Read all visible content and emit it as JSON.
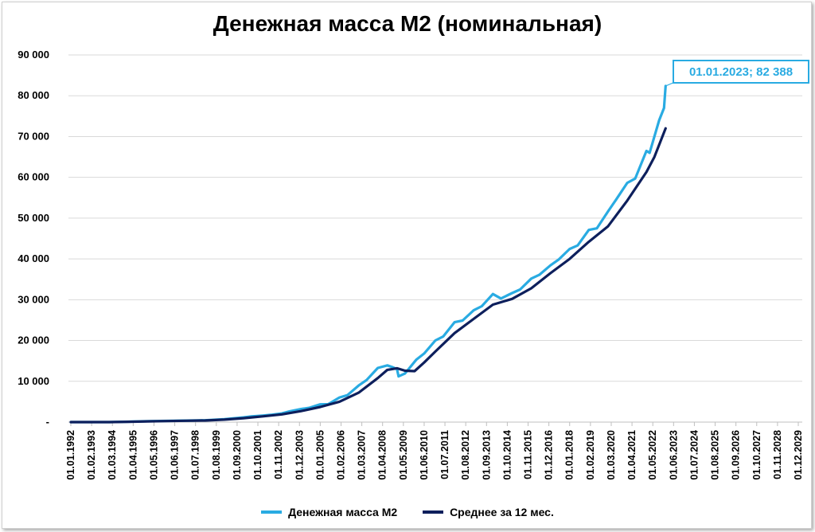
{
  "chart_data": {
    "type": "line",
    "title": "Денежная масса М2 (номинальная)",
    "ylim": [
      0,
      90000
    ],
    "yticks": [
      {
        "value": 0,
        "label": "-"
      },
      {
        "value": 10000,
        "label": "10 000"
      },
      {
        "value": 20000,
        "label": "20 000"
      },
      {
        "value": 30000,
        "label": "30 000"
      },
      {
        "value": 40000,
        "label": "40 000"
      },
      {
        "value": 50000,
        "label": "50 000"
      },
      {
        "value": 60000,
        "label": "60 000"
      },
      {
        "value": 70000,
        "label": "70 000"
      },
      {
        "value": 80000,
        "label": "80 000"
      },
      {
        "value": 90000,
        "label": "90 000"
      }
    ],
    "xticks": [
      "01.01.1992",
      "01.02.1993",
      "01.03.1994",
      "01.04.1995",
      "01.05.1996",
      "01.06.1997",
      "01.07.1998",
      "01.08.1999",
      "01.09.2000",
      "01.10.2001",
      "01.11.2002",
      "01.12.2003",
      "01.01.2005",
      "01.02.2006",
      "01.03.2007",
      "01.04.2008",
      "01.05.2009",
      "01.06.2010",
      "01.07.2011",
      "01.08.2012",
      "01.09.2013",
      "01.10.2014",
      "01.11.2015",
      "01.12.2016",
      "01.01.2018",
      "01.02.2019",
      "01.03.2020",
      "01.04.2021",
      "01.05.2022",
      "01.06.2023",
      "01.07.2024",
      "01.08.2025",
      "01.09.2026",
      "01.10.2027",
      "01.11.2028",
      "01.12.2029"
    ],
    "grid": true,
    "legend_position": "bottom",
    "series": [
      {
        "name": "Денежная масса М2",
        "color": "#29abe2",
        "points": [
          [
            "1992-01-01",
            0
          ],
          [
            "1993-01-01",
            0
          ],
          [
            "1994-01-01",
            0
          ],
          [
            "1995-01-01",
            100
          ],
          [
            "1996-01-01",
            220
          ],
          [
            "1997-01-01",
            290
          ],
          [
            "1998-01-01",
            380
          ],
          [
            "1999-01-01",
            450
          ],
          [
            "2000-01-01",
            710
          ],
          [
            "2001-01-01",
            1150
          ],
          [
            "2001-06-01",
            1380
          ],
          [
            "2002-01-01",
            1610
          ],
          [
            "2002-06-01",
            1780
          ],
          [
            "2003-01-01",
            2130
          ],
          [
            "2003-06-01",
            2650
          ],
          [
            "2004-01-01",
            3210
          ],
          [
            "2004-06-01",
            3500
          ],
          [
            "2005-01-01",
            4360
          ],
          [
            "2005-06-01",
            4400
          ],
          [
            "2006-01-01",
            6030
          ],
          [
            "2006-06-01",
            6600
          ],
          [
            "2007-01-01",
            8970
          ],
          [
            "2007-06-01",
            10300
          ],
          [
            "2008-01-01",
            13270
          ],
          [
            "2008-07-01",
            13900
          ],
          [
            "2008-10-01",
            13500
          ],
          [
            "2009-01-01",
            12980
          ],
          [
            "2009-02-01",
            11200
          ],
          [
            "2009-06-01",
            11900
          ],
          [
            "2010-01-01",
            15270
          ],
          [
            "2010-06-01",
            16800
          ],
          [
            "2011-01-01",
            20010
          ],
          [
            "2011-06-01",
            21000
          ],
          [
            "2012-01-01",
            24480
          ],
          [
            "2012-06-01",
            24900
          ],
          [
            "2013-01-01",
            27410
          ],
          [
            "2013-06-01",
            28400
          ],
          [
            "2014-01-01",
            31400
          ],
          [
            "2014-06-01",
            30300
          ],
          [
            "2015-01-01",
            31620
          ],
          [
            "2015-06-01",
            32500
          ],
          [
            "2016-01-01",
            35180
          ],
          [
            "2016-06-01",
            36100
          ],
          [
            "2017-01-01",
            38420
          ],
          [
            "2017-06-01",
            39800
          ],
          [
            "2018-01-01",
            42440
          ],
          [
            "2018-06-01",
            43300
          ],
          [
            "2019-01-01",
            47110
          ],
          [
            "2019-06-01",
            47500
          ],
          [
            "2020-01-01",
            51660
          ],
          [
            "2020-06-01",
            54500
          ],
          [
            "2021-01-01",
            58650
          ],
          [
            "2021-06-01",
            59700
          ],
          [
            "2022-01-01",
            66480
          ],
          [
            "2022-03-01",
            66000
          ],
          [
            "2022-06-01",
            70000
          ],
          [
            "2022-09-01",
            74000
          ],
          [
            "2022-12-01",
            77000
          ],
          [
            "2023-01-01",
            82388
          ]
        ]
      },
      {
        "name": "Среднее за 12 мес.",
        "color": "#0d1f5c",
        "points": [
          [
            "1992-01-01",
            0
          ],
          [
            "1993-01-01",
            0
          ],
          [
            "1994-01-01",
            0
          ],
          [
            "1995-01-01",
            80
          ],
          [
            "1996-01-01",
            180
          ],
          [
            "1997-01-01",
            260
          ],
          [
            "1998-01-01",
            340
          ],
          [
            "1999-01-01",
            400
          ],
          [
            "2000-01-01",
            600
          ],
          [
            "2001-01-01",
            950
          ],
          [
            "2002-01-01",
            1400
          ],
          [
            "2003-01-01",
            1900
          ],
          [
            "2004-01-01",
            2700
          ],
          [
            "2005-01-01",
            3700
          ],
          [
            "2006-01-01",
            5000
          ],
          [
            "2007-01-01",
            7200
          ],
          [
            "2008-01-01",
            10800
          ],
          [
            "2008-07-01",
            12800
          ],
          [
            "2009-01-01",
            13200
          ],
          [
            "2009-06-01",
            12600
          ],
          [
            "2009-12-01",
            12500
          ],
          [
            "2010-06-01",
            14600
          ],
          [
            "2011-01-01",
            17300
          ],
          [
            "2012-01-01",
            21800
          ],
          [
            "2013-01-01",
            25300
          ],
          [
            "2014-01-01",
            28800
          ],
          [
            "2015-01-01",
            30200
          ],
          [
            "2016-01-01",
            32800
          ],
          [
            "2017-01-01",
            36500
          ],
          [
            "2018-01-01",
            40000
          ],
          [
            "2019-01-01",
            44200
          ],
          [
            "2020-01-01",
            48000
          ],
          [
            "2021-01-01",
            54300
          ],
          [
            "2022-01-01",
            61300
          ],
          [
            "2022-06-01",
            65000
          ],
          [
            "2023-01-01",
            72000
          ]
        ]
      }
    ],
    "annotation": {
      "label": "01.01.2023; 82 388",
      "x": "2023-01-01",
      "y": 82388
    }
  },
  "legend": {
    "m2_label": "Денежная масса М2",
    "avg_label": "Среднее за 12 мес."
  }
}
